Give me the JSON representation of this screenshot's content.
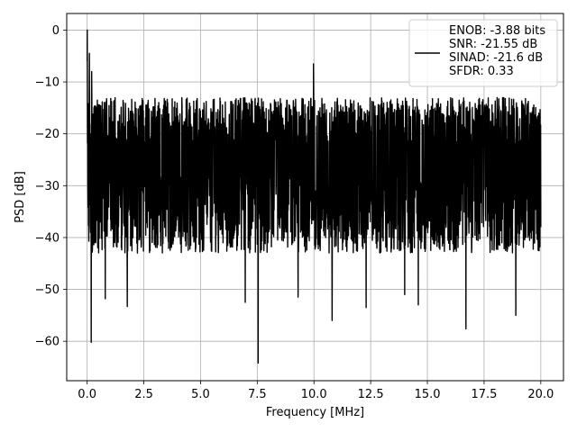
{
  "chart_data": {
    "type": "line",
    "xlabel": "Frequency [MHz]",
    "ylabel": "PSD [dB]",
    "xlim": [
      -0.9,
      21.0
    ],
    "ylim": [
      -67.6,
      3.2
    ],
    "x_ticks": [
      0.0,
      2.5,
      5.0,
      7.5,
      10.0,
      12.5,
      15.0,
      17.5,
      20.0
    ],
    "x_tick_labels": [
      "0.0",
      "2.5",
      "5.0",
      "7.5",
      "10.0",
      "12.5",
      "15.0",
      "17.5",
      "20.0"
    ],
    "y_ticks": [
      0,
      -10,
      -20,
      -30,
      -40,
      -50,
      -60
    ],
    "y_tick_labels": [
      "0",
      "−10",
      "−20",
      "−30",
      "−40",
      "−50",
      "−60"
    ],
    "grid": true,
    "legend_position": "top-right",
    "series": [
      {
        "name": "ENOB: -3.88 bits\nSNR: -21.55 dB\nSINAD: -21.6 dB\nSFDR: 0.33",
        "color": "#000000",
        "noise_band": {
          "x_start": 0.0,
          "x_end": 20.0,
          "upper_typical": -13,
          "lower_typical": -35,
          "median": -24
        },
        "peaks": [
          {
            "x": 0.0,
            "y": 0.0
          },
          {
            "x": 0.1,
            "y": -4.5
          },
          {
            "x": 0.2,
            "y": -8.0
          },
          {
            "x": 9.98,
            "y": -6.5
          }
        ],
        "dips": [
          {
            "x": 0.18,
            "y": -60.2
          },
          {
            "x": 0.8,
            "y": -51.8
          },
          {
            "x": 1.77,
            "y": -53.3
          },
          {
            "x": 6.97,
            "y": -52.5
          },
          {
            "x": 7.54,
            "y": -64.2
          },
          {
            "x": 9.3,
            "y": -51.5
          },
          {
            "x": 10.8,
            "y": -56.0
          },
          {
            "x": 12.3,
            "y": -53.5
          },
          {
            "x": 14.0,
            "y": -51.0
          },
          {
            "x": 14.6,
            "y": -53.0
          },
          {
            "x": 16.7,
            "y": -57.6
          },
          {
            "x": 18.9,
            "y": -55.0
          }
        ]
      }
    ],
    "legend": {
      "lines": [
        "ENOB: -3.88 bits",
        "SNR: -21.55 dB",
        "SINAD: -21.6 dB",
        "SFDR: 0.33"
      ]
    }
  }
}
